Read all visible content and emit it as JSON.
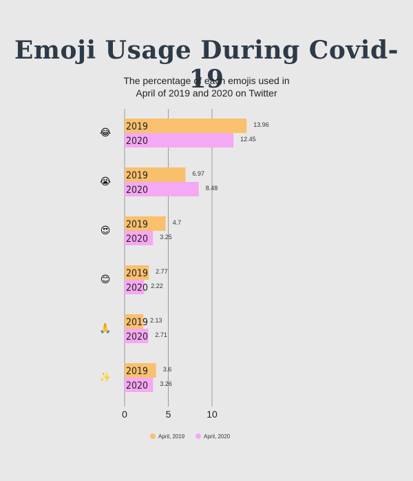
{
  "header": {
    "title": "Emoji Usage During Covid-19",
    "subtitle_line1": "The percentage of each emojis used in",
    "subtitle_line2": "April of 2019 and 2020 on Twitter"
  },
  "chart_data": {
    "type": "bar",
    "orientation": "horizontal",
    "title": "Emoji Usage During Covid-19",
    "subtitle": "The percentage of each emojis used in April of 2019 and 2020 on Twitter",
    "categories": [
      "😂",
      "😭",
      "😍",
      "😊",
      "🙏",
      "✨"
    ],
    "series": [
      {
        "name": "April, 2019",
        "bar_label": "2019",
        "color": "#f9c06e",
        "values": [
          13.96,
          6.97,
          4.7,
          2.77,
          2.13,
          3.6
        ]
      },
      {
        "name": "April, 2020",
        "bar_label": "2020",
        "color": "#f5a8f3",
        "values": [
          12.45,
          8.48,
          3.25,
          2.22,
          2.71,
          3.26
        ]
      }
    ],
    "xticks": [
      0,
      5,
      10
    ],
    "xlim": [
      0,
      15
    ],
    "grid": true,
    "legend_position": "bottom-center",
    "colors": {
      "gridline": "#9a9a9a",
      "label_text": "#333333",
      "title": "#2e3a48"
    }
  }
}
